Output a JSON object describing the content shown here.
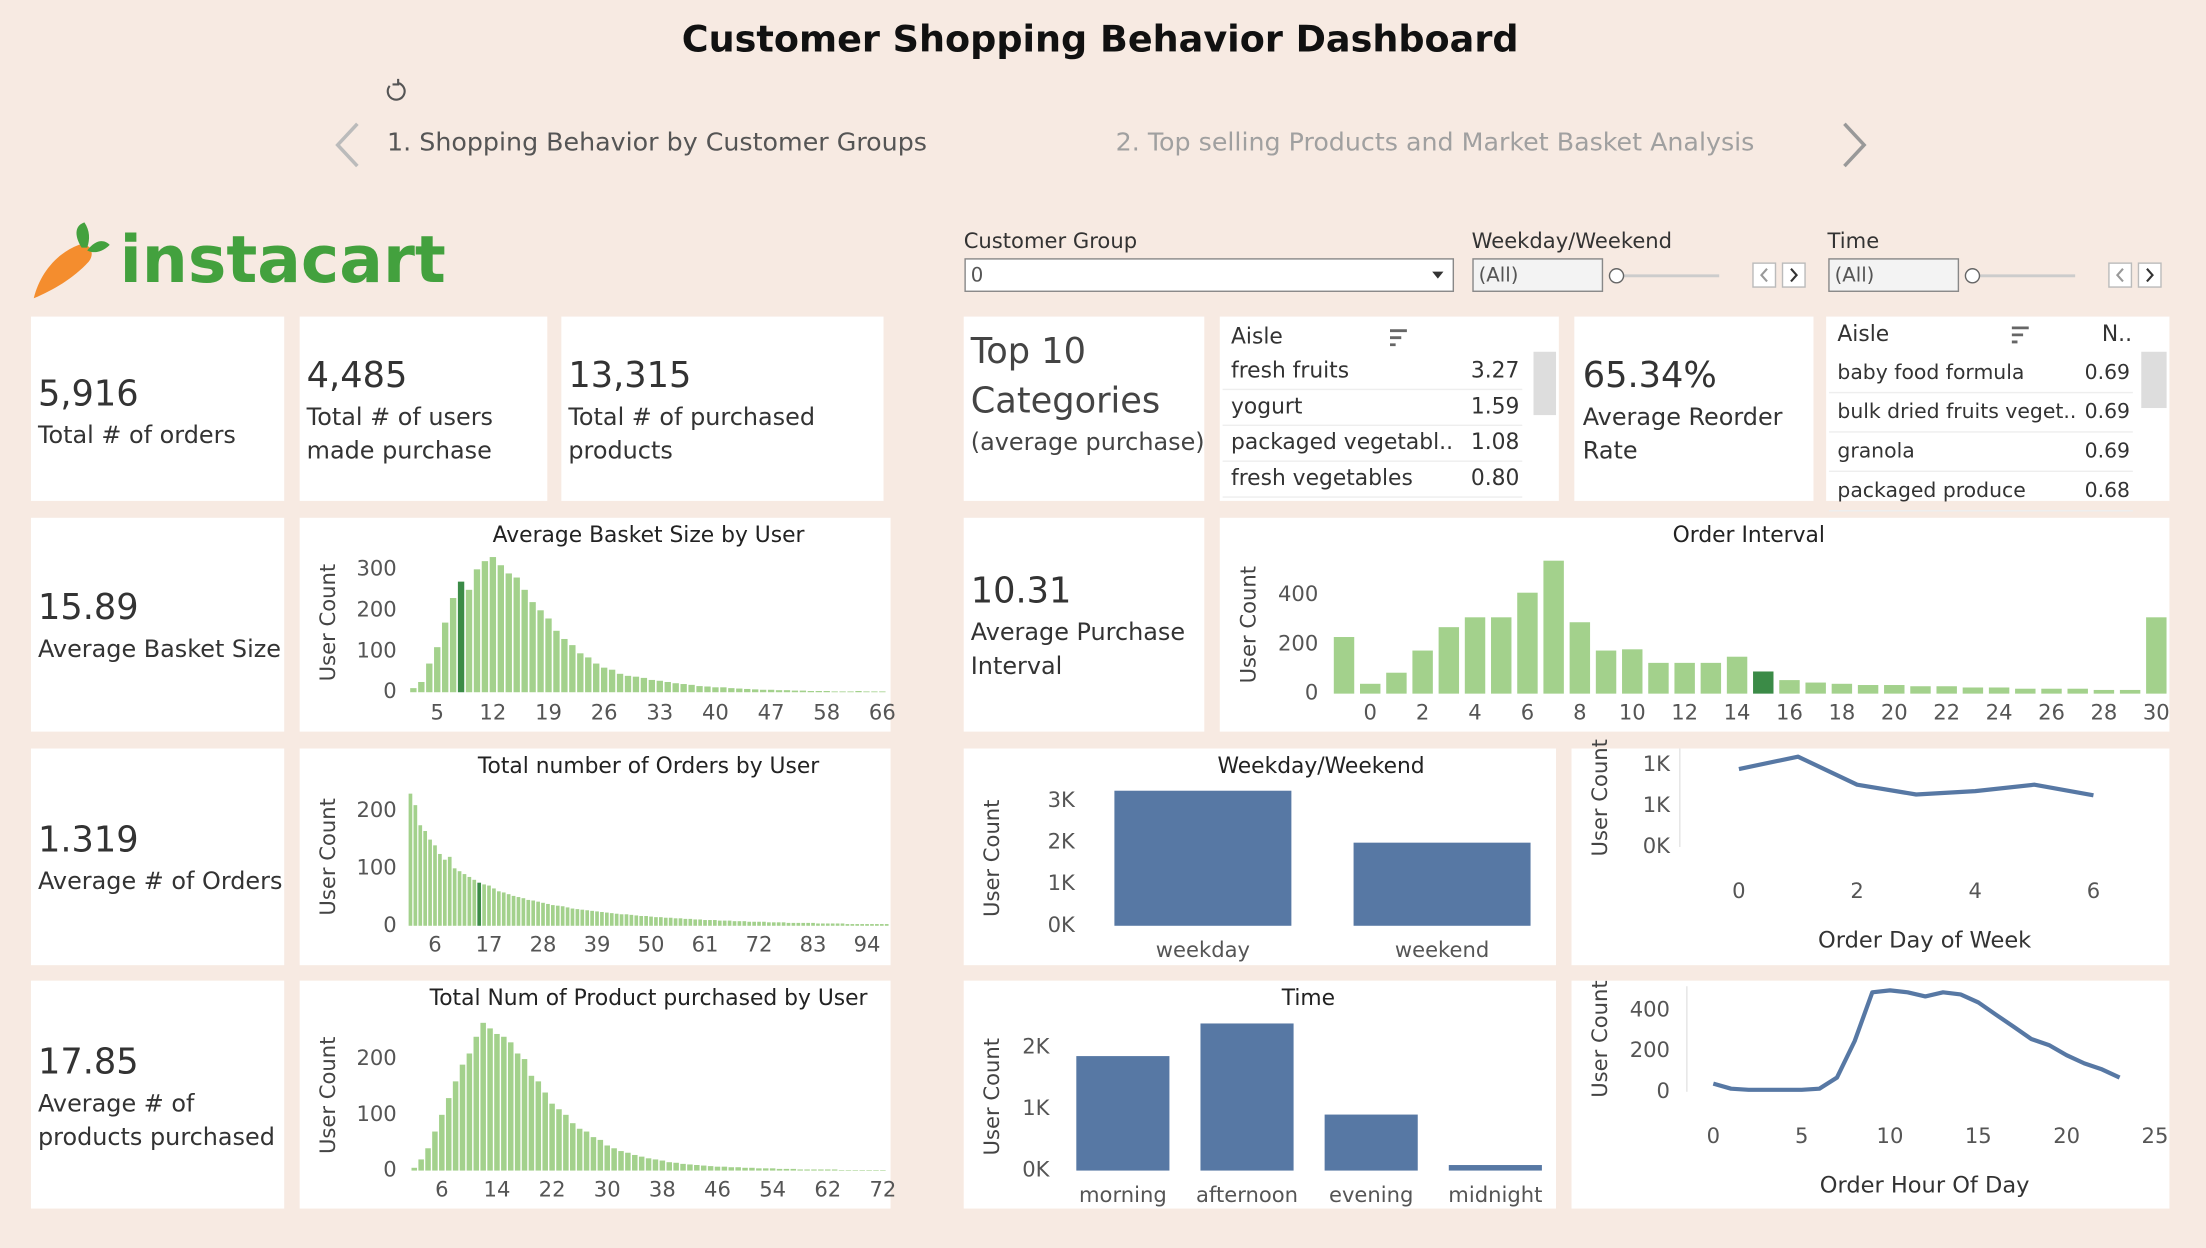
{
  "header": {
    "title": "Customer Shopping Behavior Dashboard",
    "tabs": [
      "1. Shopping Behavior by Customer Groups",
      "2. Top selling Products and Market Basket Analysis"
    ],
    "logo": "instacart"
  },
  "filters": [
    {
      "label": "Customer Group",
      "value": "0"
    },
    {
      "label": "Weekday/Weekend",
      "value": "(All)"
    },
    {
      "label": "Time",
      "value": "(All)"
    }
  ],
  "kpis": [
    {
      "value": "5,916",
      "label": [
        "Total # of orders"
      ]
    },
    {
      "value": "4,485",
      "label": [
        "Total # of users",
        "made purchase"
      ]
    },
    {
      "value": "13,315",
      "label": [
        "Total # of purchased",
        "products"
      ]
    },
    {
      "value": "65.34%",
      "label": [
        "Average Reorder",
        "Rate"
      ]
    },
    {
      "value": "15.89",
      "label": [
        "Average Basket Size"
      ]
    },
    {
      "value": "10.31",
      "label": [
        "Average Purchase",
        "Interval"
      ]
    },
    {
      "value": "1.319",
      "label": [
        "Average # of Orders"
      ]
    },
    {
      "value": "17.85",
      "label": [
        "Average # of",
        "products purchased"
      ]
    }
  ],
  "tables": [
    {
      "title": [
        "Top 10",
        "Categories"
      ],
      "subtitle": "(average purchase)",
      "columns": [
        "Aisle"
      ],
      "rows": [
        [
          "fresh fruits",
          "3.27"
        ],
        [
          "yogurt",
          "1.59"
        ],
        [
          "packaged vegetabl..",
          "1.08"
        ],
        [
          "fresh vegetables",
          "0.80"
        ]
      ]
    },
    {
      "columns": [
        "Aisle",
        "N.."
      ],
      "rows": [
        [
          "baby food formula",
          "0.69"
        ],
        [
          "bulk dried fruits veget..",
          "0.69"
        ],
        [
          "granola",
          "0.69"
        ],
        [
          "packaged produce",
          "0.68"
        ]
      ]
    }
  ],
  "chart_data": [
    {
      "type": "bar",
      "title": "Average Basket Size by User",
      "y_label": "User Count",
      "color": "#a3d18c",
      "highlight": 6,
      "highlight_color": "#3b8b47",
      "categories": [
        null,
        null,
        null,
        5,
        null,
        null,
        null,
        null,
        null,
        null,
        12,
        null,
        null,
        null,
        null,
        null,
        null,
        19,
        null,
        null,
        null,
        null,
        null,
        null,
        26,
        null,
        null,
        null,
        null,
        null,
        null,
        33,
        null,
        null,
        null,
        null,
        null,
        null,
        40,
        null,
        null,
        null,
        null,
        null,
        null,
        47,
        null,
        null,
        null,
        null,
        null,
        null,
        58,
        null,
        null,
        null,
        null,
        null,
        null,
        66
      ],
      "values": [
        10,
        25,
        70,
        110,
        170,
        230,
        270,
        250,
        300,
        320,
        330,
        310,
        290,
        280,
        250,
        220,
        200,
        180,
        150,
        130,
        115,
        95,
        85,
        70,
        60,
        55,
        45,
        40,
        38,
        35,
        30,
        28,
        25,
        22,
        20,
        18,
        15,
        14,
        12,
        12,
        10,
        9,
        8,
        7,
        6,
        6,
        5,
        5,
        4,
        4,
        3,
        3,
        3,
        2,
        2,
        2,
        3,
        2,
        2,
        2
      ],
      "ylim": [
        0,
        340
      ],
      "yticks": [
        0,
        100,
        200,
        300
      ]
    },
    {
      "type": "bar",
      "title": "Total number of Orders by User",
      "y_label": "User Count",
      "color": "#a3d18c",
      "highlight": 14,
      "highlight_color": "#3b8b47",
      "categories": [
        null,
        null,
        null,
        null,
        null,
        6,
        null,
        null,
        null,
        null,
        null,
        null,
        null,
        null,
        null,
        null,
        17,
        null,
        null,
        null,
        null,
        null,
        null,
        null,
        null,
        null,
        null,
        28,
        null,
        null,
        null,
        null,
        null,
        null,
        null,
        null,
        null,
        null,
        39,
        null,
        null,
        null,
        null,
        null,
        null,
        null,
        null,
        null,
        null,
        50,
        null,
        null,
        null,
        null,
        null,
        null,
        null,
        null,
        null,
        null,
        61,
        null,
        null,
        null,
        null,
        null,
        null,
        null,
        null,
        null,
        null,
        72,
        null,
        null,
        null,
        null,
        null,
        null,
        null,
        null,
        null,
        null,
        83,
        null,
        null,
        null,
        null,
        null,
        null,
        null,
        null,
        null,
        null,
        94,
        null,
        null,
        null,
        null
      ],
      "values": [
        230,
        210,
        175,
        165,
        150,
        140,
        125,
        115,
        120,
        100,
        95,
        90,
        85,
        80,
        75,
        72,
        70,
        65,
        60,
        58,
        55,
        52,
        50,
        48,
        45,
        44,
        42,
        40,
        38,
        36,
        35,
        34,
        32,
        30,
        29,
        28,
        27,
        26,
        25,
        24,
        23,
        22,
        21,
        20,
        20,
        19,
        18,
        17,
        17,
        16,
        15,
        15,
        14,
        14,
        13,
        13,
        12,
        12,
        11,
        11,
        10,
        10,
        10,
        9,
        9,
        9,
        8,
        8,
        8,
        7,
        7,
        7,
        7,
        6,
        6,
        6,
        6,
        5,
        5,
        5,
        5,
        5,
        5,
        4,
        4,
        4,
        4,
        4,
        4,
        3,
        3,
        3,
        3,
        3,
        3,
        3,
        3,
        3
      ],
      "ylim": [
        0,
        240
      ],
      "yticks": [
        0,
        100,
        200
      ]
    },
    {
      "type": "bar",
      "title": "Total Num of Product purchased by User",
      "y_label": "User Count",
      "color": "#a3d18c",
      "categories": [
        null,
        null,
        null,
        null,
        6,
        null,
        null,
        null,
        null,
        null,
        null,
        null,
        14,
        null,
        null,
        null,
        null,
        null,
        null,
        null,
        22,
        null,
        null,
        null,
        null,
        null,
        null,
        null,
        30,
        null,
        null,
        null,
        null,
        null,
        null,
        null,
        38,
        null,
        null,
        null,
        null,
        null,
        null,
        null,
        46,
        null,
        null,
        null,
        null,
        null,
        null,
        null,
        54,
        null,
        null,
        null,
        null,
        null,
        null,
        null,
        62,
        null,
        null,
        null,
        null,
        null,
        null,
        null,
        72
      ],
      "values": [
        5,
        20,
        40,
        70,
        100,
        130,
        160,
        190,
        210,
        240,
        265,
        255,
        245,
        240,
        230,
        210,
        200,
        170,
        160,
        140,
        120,
        110,
        100,
        85,
        75,
        70,
        60,
        55,
        45,
        40,
        35,
        32,
        28,
        25,
        22,
        20,
        18,
        15,
        14,
        12,
        11,
        10,
        9,
        8,
        7,
        7,
        6,
        6,
        5,
        5,
        4,
        4,
        4,
        3,
        3,
        3,
        2,
        2,
        2,
        2,
        2,
        2,
        1,
        1,
        1,
        1,
        1,
        1,
        1
      ],
      "ylim": [
        0,
        270
      ],
      "yticks": [
        0,
        100,
        200
      ]
    },
    {
      "type": "bar",
      "title": "Order Interval",
      "y_label": "User Count",
      "color": "#a3d18c",
      "highlight": 16,
      "highlight_color": "#3b8b47",
      "categories": [
        null,
        0,
        null,
        2,
        null,
        4,
        null,
        6,
        null,
        8,
        null,
        10,
        null,
        12,
        null,
        14,
        null,
        16,
        null,
        18,
        null,
        20,
        null,
        22,
        null,
        24,
        null,
        26,
        null,
        28,
        null,
        30
      ],
      "values": [
        230,
        40,
        85,
        175,
        270,
        310,
        310,
        410,
        540,
        290,
        175,
        180,
        125,
        125,
        125,
        150,
        90,
        55,
        45,
        40,
        35,
        35,
        30,
        30,
        25,
        25,
        20,
        20,
        20,
        15,
        15,
        310
      ],
      "ylim": [
        0,
        560
      ],
      "yticks": [
        0,
        200,
        400
      ]
    },
    {
      "type": "bar",
      "title": "Weekday/Weekend",
      "y_label": "User Count",
      "color": "#5778a4",
      "categories": [
        "weekday",
        "weekend"
      ],
      "values": [
        3250,
        2000
      ],
      "ylim": [
        0,
        3250
      ],
      "yticks": [
        {
          "value": 0,
          "label": "0K"
        },
        {
          "value": 1000,
          "label": "1K"
        },
        {
          "value": 2000,
          "label": "2K"
        },
        {
          "value": 3000,
          "label": "3K"
        }
      ]
    },
    {
      "type": "line",
      "y_label": "User Count",
      "x_label": "Order Day of Week",
      "color": "#5778a4",
      "x": [
        0,
        1,
        2,
        3,
        4,
        5,
        6
      ],
      "values": [
        950,
        1100,
        760,
        640,
        680,
        760,
        630
      ],
      "xlim": [
        -1,
        7
      ],
      "xticks": [
        0,
        2,
        4,
        6
      ],
      "ylim": [
        0,
        1200
      ],
      "yticks": [
        {
          "value": 0,
          "label": "0K"
        },
        {
          "value": 500,
          "label": "1K"
        },
        {
          "value": 1000,
          "label": "1K"
        }
      ]
    },
    {
      "type": "bar",
      "title": "Time",
      "y_label": "User Count",
      "color": "#5778a4",
      "categories": [
        "morning",
        "afternoon",
        "evening",
        "midnight"
      ],
      "values": [
        1860,
        2390,
        910,
        90
      ],
      "ylim": [
        0,
        2400
      ],
      "yticks": [
        {
          "value": 0,
          "label": "0K"
        },
        {
          "value": 1000,
          "label": "1K"
        },
        {
          "value": 2000,
          "label": "2K"
        }
      ]
    },
    {
      "type": "line",
      "y_label": "User Count",
      "x_label": "Order Hour Of Day",
      "color": "#5778a4",
      "x": [
        0,
        1,
        2,
        3,
        4,
        5,
        6,
        7,
        8,
        9,
        10,
        11,
        12,
        13,
        14,
        15,
        16,
        17,
        18,
        19,
        20,
        21,
        22,
        23
      ],
      "values": [
        40,
        15,
        10,
        10,
        10,
        10,
        15,
        70,
        250,
        490,
        500,
        490,
        470,
        490,
        480,
        440,
        380,
        320,
        260,
        230,
        180,
        140,
        110,
        70
      ],
      "xlim": [
        -1.5,
        25.5
      ],
      "xticks": [
        0,
        5,
        10,
        15,
        20,
        25
      ],
      "ylim": [
        0,
        520
      ],
      "yticks": [
        0,
        200,
        400
      ]
    }
  ]
}
